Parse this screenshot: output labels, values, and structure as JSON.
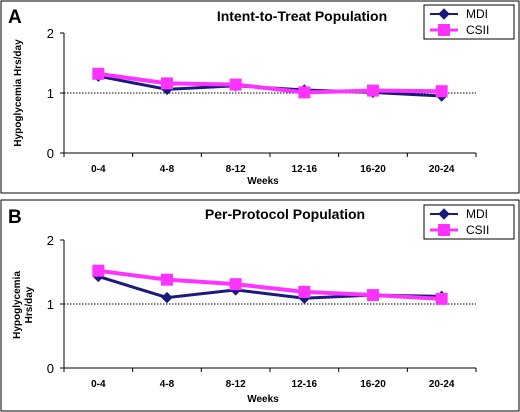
{
  "chart_data": [
    {
      "type": "line",
      "panel": "A",
      "title": "Intent-to-Treat Population",
      "xlabel": "Weeks",
      "ylabel": "Hypoglycemia Hrs/day",
      "categories": [
        "0-4",
        "4-8",
        "8-12",
        "12-16",
        "16-20",
        "20-24"
      ],
      "ylim": [
        0,
        2
      ],
      "yticks": [
        "0",
        "1",
        "2"
      ],
      "reference_line": 1,
      "legend_position": "top-right",
      "series": [
        {
          "name": "MDI",
          "color": "#1a1a7e",
          "marker": "diamond",
          "values": [
            1.28,
            1.06,
            1.12,
            1.05,
            1.01,
            0.95
          ]
        },
        {
          "name": "CSII",
          "color": "#ff33ff",
          "marker": "square",
          "values": [
            1.32,
            1.16,
            1.14,
            1.01,
            1.04,
            1.03
          ]
        }
      ]
    },
    {
      "type": "line",
      "panel": "B",
      "title": "Per-Protocol Population",
      "xlabel": "Weeks",
      "ylabel_line1": "Hypoglycemia",
      "ylabel_line2": "Hrs/day",
      "categories": [
        "0-4",
        "4-8",
        "8-12",
        "12-16",
        "16-20",
        "20-24"
      ],
      "ylim": [
        0,
        2
      ],
      "yticks": [
        "0",
        "1",
        "2"
      ],
      "reference_line": 1,
      "legend_position": "top-right",
      "series": [
        {
          "name": "MDI",
          "color": "#1a1a7e",
          "marker": "diamond",
          "values": [
            1.43,
            1.1,
            1.22,
            1.09,
            1.14,
            1.12
          ]
        },
        {
          "name": "CSII",
          "color": "#ff33ff",
          "marker": "square",
          "values": [
            1.52,
            1.38,
            1.31,
            1.19,
            1.14,
            1.08
          ]
        }
      ]
    }
  ]
}
